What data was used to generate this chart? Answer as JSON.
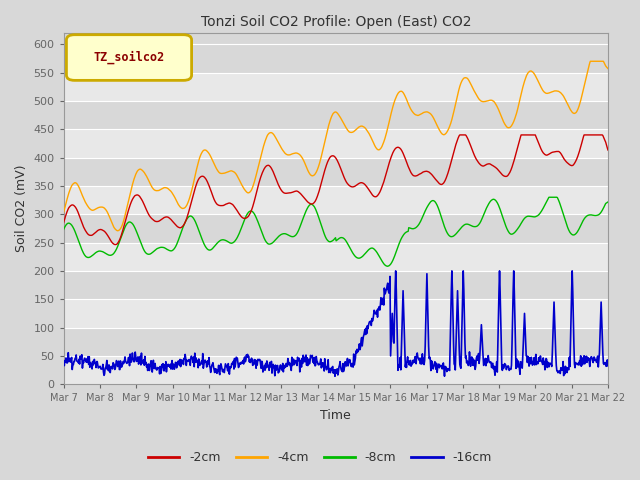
{
  "title": "Tonzi Soil CO2 Profile: Open (East) CO2",
  "xlabel": "Time",
  "ylabel": "Soil CO2 (mV)",
  "ylim": [
    0,
    620
  ],
  "yticks": [
    0,
    50,
    100,
    150,
    200,
    250,
    300,
    350,
    400,
    450,
    500,
    550,
    600
  ],
  "legend_label": "TZ_soilco2",
  "series_labels": [
    "-2cm",
    "-4cm",
    "-8cm",
    "-16cm"
  ],
  "series_colors": [
    "#cc0000",
    "#ffa500",
    "#00bb00",
    "#0000cc"
  ],
  "background_color": "#d8d8d8",
  "plot_bg_light": "#e8e8e8",
  "plot_bg_dark": "#d8d8d8",
  "xtick_labels": [
    "Mar 7",
    "Mar 8",
    "Mar 9",
    "Mar 10",
    "Mar 11",
    "Mar 12",
    "Mar 13",
    "Mar 14",
    "Mar 15",
    "Mar 16",
    "Mar 17",
    "Mar 18",
    "Mar 19",
    "Mar 20",
    "Mar 21",
    "Mar 22"
  ],
  "n_points": 960,
  "seed": 123
}
